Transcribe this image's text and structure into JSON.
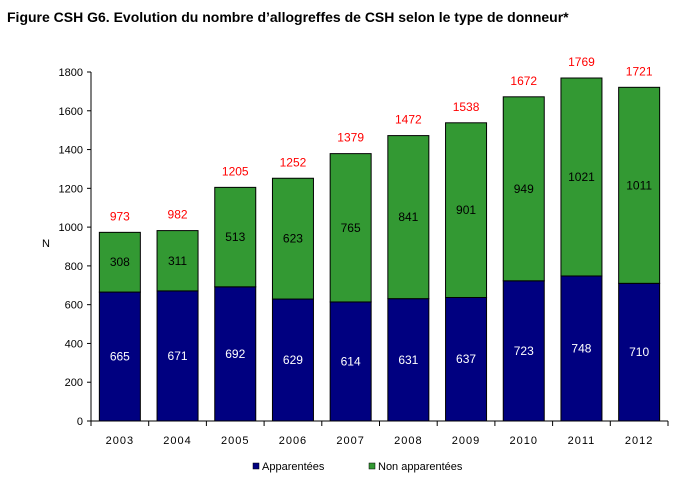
{
  "chart_data": {
    "type": "bar",
    "stacked": true,
    "title": "Figure CSH G6. Evolution du nombre d’allogreffes de CSH selon le type de donneur*",
    "xlabel": "",
    "ylabel": "N",
    "ylim": [
      0,
      1800
    ],
    "yticks": [
      0,
      200,
      400,
      600,
      800,
      1000,
      1200,
      1400,
      1600,
      1800
    ],
    "categories": [
      "2003",
      "2004",
      "2005",
      "2006",
      "2007",
      "2008",
      "2009",
      "2010",
      "2011",
      "2012"
    ],
    "series": [
      {
        "name": "Apparentées",
        "color": "#000080",
        "label_color": "#ffffff",
        "values": [
          665,
          671,
          692,
          629,
          614,
          631,
          637,
          723,
          748,
          710
        ]
      },
      {
        "name": "Non apparentées",
        "color": "#339933",
        "label_color": "#000000",
        "values": [
          308,
          311,
          513,
          623,
          765,
          841,
          901,
          949,
          1021,
          1011
        ]
      }
    ],
    "totals": [
      973,
      982,
      1205,
      1252,
      1379,
      1472,
      1538,
      1672,
      1769,
      1721
    ],
    "totals_color": "#ff0000",
    "grid": false,
    "legend_position": "bottom"
  }
}
